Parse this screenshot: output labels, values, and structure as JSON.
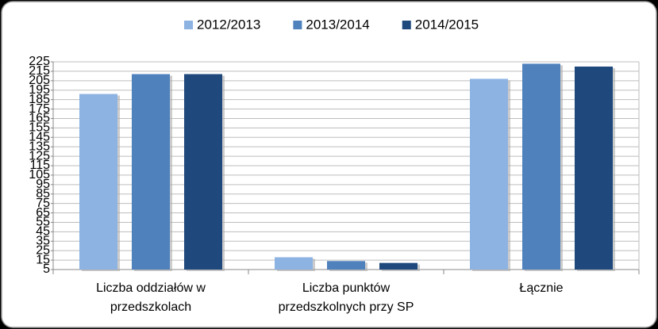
{
  "chart_data": {
    "type": "bar",
    "categories": [
      "Liczba oddziałów w przedszkolach",
      "Liczba punktów przedszkolnych przy SP",
      "Łącznie"
    ],
    "series": [
      {
        "name": "2012/2013",
        "color": "#8db3e2",
        "values": [
          191,
          18,
          207
        ]
      },
      {
        "name": "2013/2014",
        "color": "#4f81bd",
        "values": [
          212,
          14,
          223
        ]
      },
      {
        "name": "2014/2015",
        "color": "#1f497d",
        "values": [
          212,
          12,
          220
        ]
      }
    ],
    "ylim": [
      5,
      225
    ],
    "yticks": [
      5,
      15,
      25,
      35,
      45,
      55,
      65,
      75,
      85,
      95,
      105,
      115,
      125,
      135,
      145,
      155,
      165,
      175,
      185,
      195,
      205,
      215,
      225
    ],
    "grid": true,
    "legend": "top"
  }
}
